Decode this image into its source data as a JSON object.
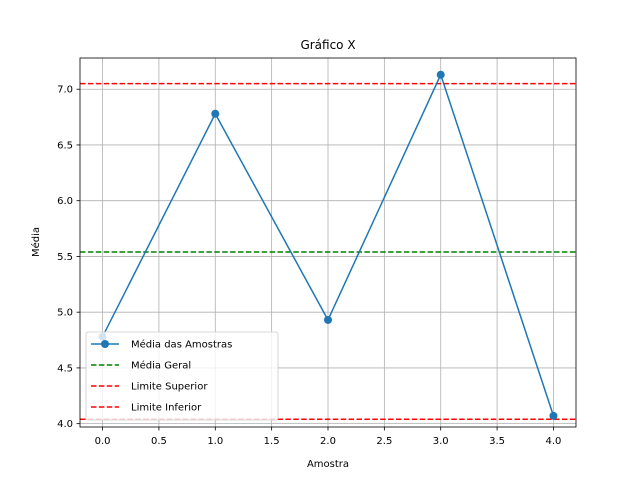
{
  "chart_data": {
    "type": "line",
    "title": "Gráfico X",
    "xlabel": "Amostra",
    "ylabel": "Média",
    "xlim": [
      -0.2,
      4.2
    ],
    "ylim": [
      3.97,
      7.28
    ],
    "xticks": [
      0.0,
      0.5,
      1.0,
      1.5,
      2.0,
      2.5,
      3.0,
      3.5,
      4.0
    ],
    "xtick_labels": [
      "0.0",
      "0.5",
      "1.0",
      "1.5",
      "2.0",
      "2.5",
      "3.0",
      "3.5",
      "4.0"
    ],
    "yticks": [
      4.0,
      4.5,
      5.0,
      5.5,
      6.0,
      6.5,
      7.0
    ],
    "ytick_labels": [
      "4.0",
      "4.5",
      "5.0",
      "5.5",
      "6.0",
      "6.5",
      "7.0"
    ],
    "grid": true,
    "legend_position": "lower-left",
    "series": [
      {
        "name": "Média das Amostras",
        "x": [
          0,
          1,
          2,
          3,
          4
        ],
        "values": [
          4.78,
          6.78,
          4.93,
          7.13,
          4.07
        ],
        "color": "#1f77b4",
        "style": "solid",
        "marker": "circle"
      }
    ],
    "hlines": [
      {
        "name": "Média Geral",
        "value": 5.54,
        "color": "#008000",
        "style": "dashed"
      },
      {
        "name": "Limite Superior",
        "value": 7.05,
        "color": "#ff0000",
        "style": "dashed"
      },
      {
        "name": "Limite Inferior",
        "value": 4.04,
        "color": "#ff0000",
        "style": "dashed"
      }
    ]
  }
}
